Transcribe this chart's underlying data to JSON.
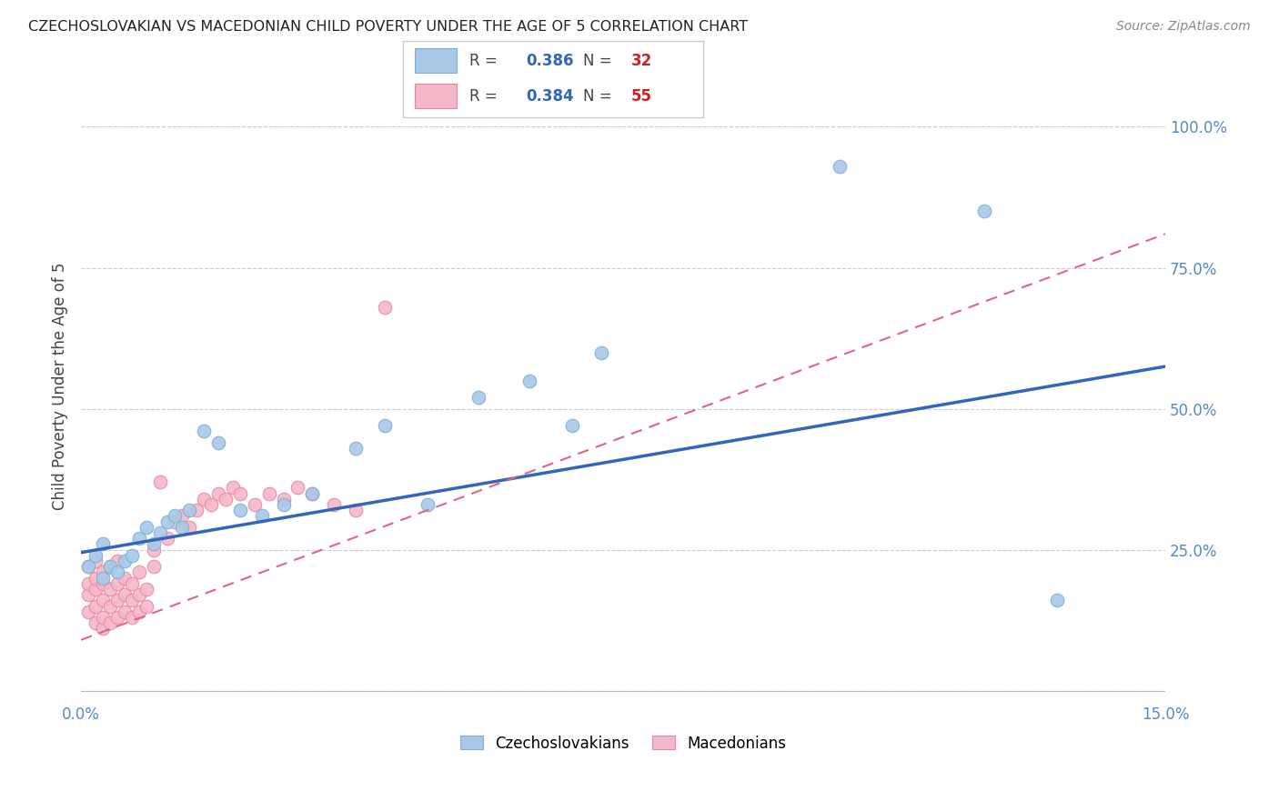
{
  "title": "CZECHOSLOVAKIAN VS MACEDONIAN CHILD POVERTY UNDER THE AGE OF 5 CORRELATION CHART",
  "source": "Source: ZipAtlas.com",
  "ylabel": "Child Poverty Under the Age of 5",
  "xlim": [
    0.0,
    0.15
  ],
  "ylim": [
    -0.02,
    1.1
  ],
  "yticks": [
    0.0,
    0.25,
    0.5,
    0.75,
    1.0
  ],
  "ytick_labels": [
    "",
    "25.0%",
    "50.0%",
    "75.0%",
    "100.0%"
  ],
  "xticks": [
    0.0,
    0.03,
    0.06,
    0.09,
    0.12,
    0.15
  ],
  "xtick_labels": [
    "0.0%",
    "",
    "",
    "",
    "",
    "15.0%"
  ],
  "czech_color": "#a8c8e8",
  "czech_edge": "#7bafd4",
  "maced_color": "#f4b8c8",
  "maced_edge": "#e888a0",
  "czech_line_color": "#3366bb",
  "maced_line_color": "#dd6680",
  "grid_color": "#cccccc",
  "background_color": "#ffffff",
  "r_czech": 0.386,
  "n_czech": 32,
  "r_maced": 0.384,
  "n_maced": 55,
  "czech_intercept": 0.245,
  "czech_slope": 2.2,
  "maced_intercept": 0.09,
  "maced_slope": 4.8,
  "czech_x": [
    0.001,
    0.002,
    0.003,
    0.003,
    0.004,
    0.005,
    0.006,
    0.007,
    0.008,
    0.009,
    0.01,
    0.011,
    0.012,
    0.013,
    0.014,
    0.015,
    0.017,
    0.019,
    0.022,
    0.025,
    0.028,
    0.032,
    0.038,
    0.042,
    0.048,
    0.055,
    0.062,
    0.068,
    0.072,
    0.105,
    0.125,
    0.135
  ],
  "czech_y": [
    0.22,
    0.24,
    0.2,
    0.26,
    0.22,
    0.21,
    0.23,
    0.24,
    0.27,
    0.29,
    0.26,
    0.28,
    0.3,
    0.31,
    0.29,
    0.32,
    0.46,
    0.44,
    0.32,
    0.31,
    0.33,
    0.35,
    0.43,
    0.47,
    0.33,
    0.52,
    0.55,
    0.47,
    0.6,
    0.93,
    0.85,
    0.16
  ],
  "maced_x": [
    0.001,
    0.001,
    0.001,
    0.001,
    0.002,
    0.002,
    0.002,
    0.002,
    0.002,
    0.003,
    0.003,
    0.003,
    0.003,
    0.003,
    0.004,
    0.004,
    0.004,
    0.004,
    0.005,
    0.005,
    0.005,
    0.005,
    0.006,
    0.006,
    0.006,
    0.007,
    0.007,
    0.007,
    0.008,
    0.008,
    0.008,
    0.009,
    0.009,
    0.01,
    0.01,
    0.011,
    0.012,
    0.013,
    0.014,
    0.015,
    0.016,
    0.017,
    0.018,
    0.019,
    0.02,
    0.021,
    0.022,
    0.024,
    0.026,
    0.028,
    0.03,
    0.032,
    0.035,
    0.038,
    0.042
  ],
  "maced_y": [
    0.14,
    0.17,
    0.19,
    0.22,
    0.12,
    0.15,
    0.18,
    0.2,
    0.23,
    0.11,
    0.13,
    0.16,
    0.19,
    0.21,
    0.12,
    0.15,
    0.18,
    0.22,
    0.13,
    0.16,
    0.19,
    0.23,
    0.14,
    0.17,
    0.2,
    0.13,
    0.16,
    0.19,
    0.14,
    0.17,
    0.21,
    0.15,
    0.18,
    0.22,
    0.25,
    0.37,
    0.27,
    0.3,
    0.31,
    0.29,
    0.32,
    0.34,
    0.33,
    0.35,
    0.34,
    0.36,
    0.35,
    0.33,
    0.35,
    0.34,
    0.36,
    0.35,
    0.33,
    0.32,
    0.68
  ]
}
